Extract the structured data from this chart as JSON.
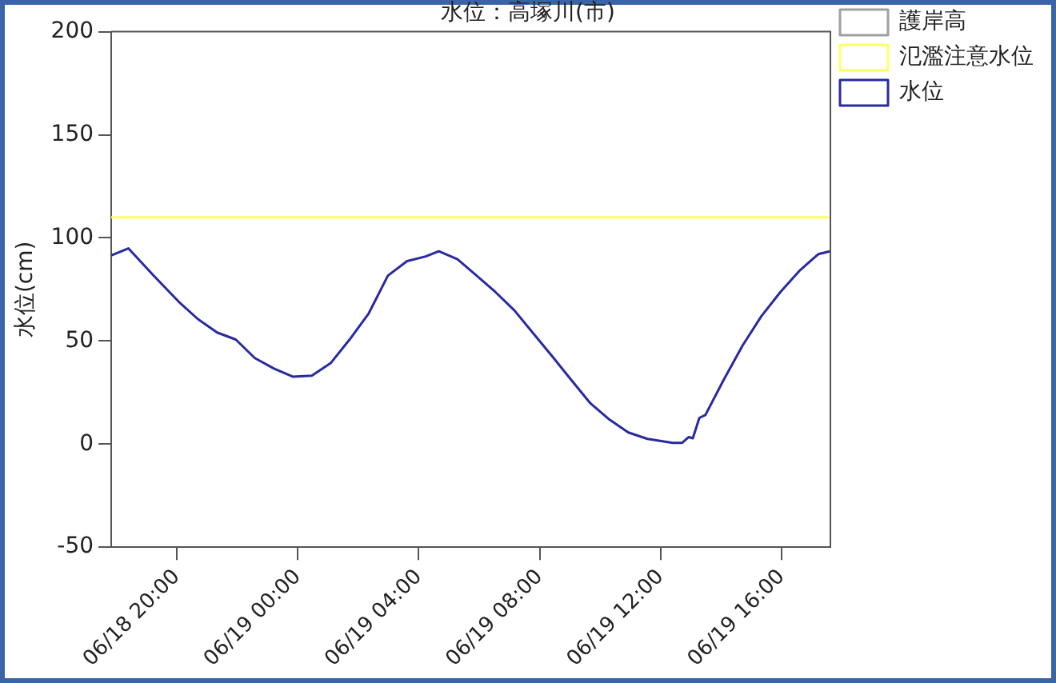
{
  "chart_data": {
    "type": "line",
    "title": "水位：高塚川(市)",
    "ylabel": "水位(cm)",
    "xlim": [
      "--06-18T17:50",
      "--06-19T17:37"
    ],
    "xticks": [
      {
        "value": "--06-18T20:00",
        "label": "06/18 20:00"
      },
      {
        "value": "--06-19T00:00",
        "label": "06/19 00:00"
      },
      {
        "value": "--06-19T04:00",
        "label": "06/19 04:00"
      },
      {
        "value": "--06-19T08:00",
        "label": "06/19 08:00"
      },
      {
        "value": "--06-19T12:00",
        "label": "06/19 12:00"
      },
      {
        "value": "--06-19T16:00",
        "label": "06/19 16:00"
      }
    ],
    "ylim": [
      -50,
      200
    ],
    "yticks": [
      -50,
      0,
      50,
      100,
      150,
      200
    ],
    "grid": false,
    "legend": "top right",
    "marker": "none",
    "line_style": "solid",
    "series": [
      {
        "name": "護岸高",
        "color": "#a0a0a0"
      },
      {
        "name": "氾濫注意水位",
        "color": "#ffff66",
        "x": [
          "--06-18T17:50",
          "--06-19T17:37"
        ],
        "values": [
          110,
          110
        ]
      },
      {
        "name": "水位",
        "color": "#2a2aa0",
        "x": [
          "--06-18T17:50",
          "--06-18T18:24",
          "--06-18T19:14",
          "--06-18T20:04",
          "--06-18T20:42",
          "--06-18T21:20",
          "--06-18T21:57",
          "--06-18T22:35",
          "--06-18T23:13",
          "--06-18T23:50",
          "--06-19T00:28",
          "--06-19T01:06",
          "--06-19T01:43",
          "--06-19T02:21",
          "--06-19T02:59",
          "--06-19T03:37",
          "--06-19T04:14",
          "--06-19T04:40",
          "--06-19T05:17",
          "--06-19T05:55",
          "--06-19T06:32",
          "--06-19T07:10",
          "--06-19T07:48",
          "--06-19T08:26",
          "--06-19T09:03",
          "--06-19T09:41",
          "--06-19T10:19",
          "--06-19T10:56",
          "--06-19T11:34",
          "--06-19T12:24",
          "--06-19T12:43",
          "--06-19T12:56",
          "--06-19T13:04",
          "--06-19T13:17",
          "--06-19T13:29",
          "--06-19T14:05",
          "--06-19T14:43",
          "--06-19T15:20",
          "--06-19T15:58",
          "--06-19T16:35",
          "--06-19T17:13",
          "--06-19T17:36"
        ],
        "values": [
          91.5,
          94.9,
          81.7,
          69.0,
          60.6,
          54.1,
          50.7,
          41.7,
          36.6,
          32.7,
          33.2,
          39.4,
          50.7,
          63.4,
          81.7,
          88.7,
          91.0,
          93.5,
          89.6,
          81.7,
          73.8,
          64.8,
          53.5,
          42.3,
          31.0,
          19.7,
          11.8,
          5.6,
          2.5,
          0.6,
          0.6,
          3.4,
          2.8,
          12.7,
          14.1,
          31.0,
          47.9,
          62.0,
          73.8,
          83.9,
          92.1,
          93.5
        ]
      }
    ]
  }
}
